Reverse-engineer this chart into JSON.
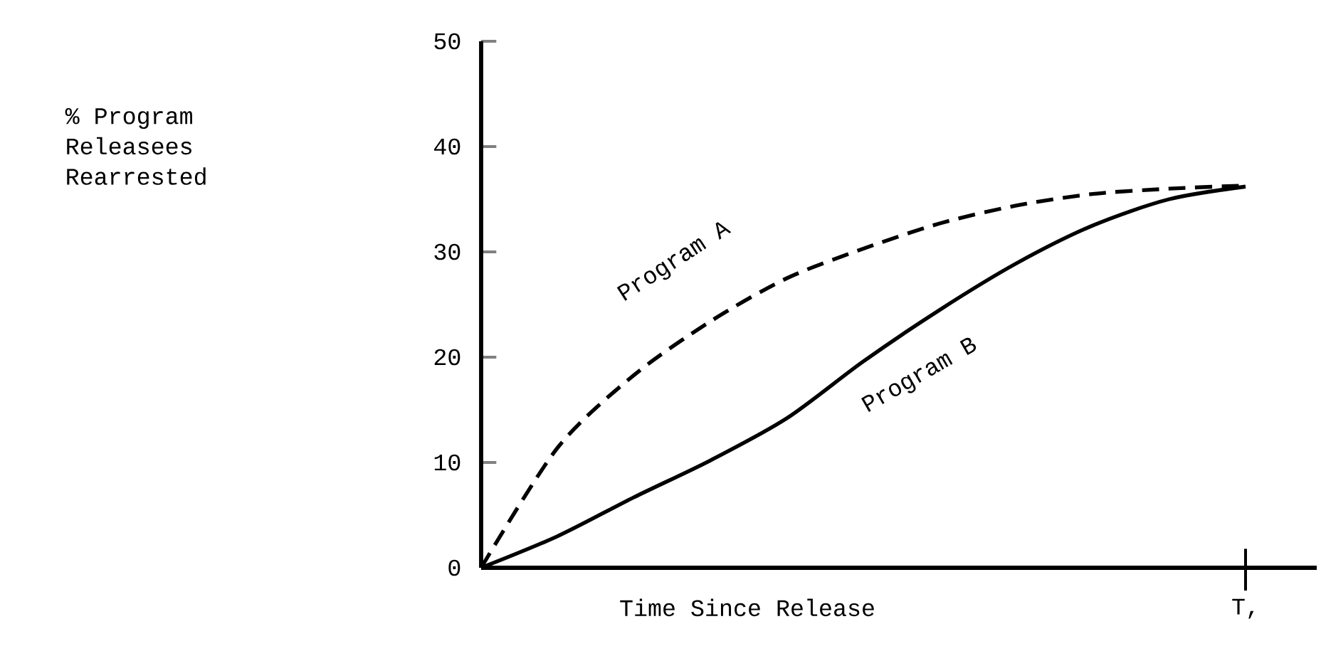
{
  "chart_data": {
    "type": "line",
    "xlabel": "Time Since Release",
    "categories": [
      null,
      null,
      null,
      null,
      null,
      null,
      null,
      null,
      null,
      null,
      null
    ],
    "series": [
      {
        "name": "Program A",
        "color": "#000000",
        "line_style": "dashed",
        "values": [
          0,
          11.4,
          18.3,
          23.4,
          27.5,
          30.3,
          32.7,
          34.4,
          35.5,
          36.0,
          36.3
        ]
      },
      {
        "name": "Program B",
        "color": "#000000",
        "line_style": "solid",
        "values": [
          0,
          3.0,
          6.7,
          10.2,
          14.2,
          19.6,
          24.5,
          28.9,
          32.5,
          35.0,
          36.2
        ]
      }
    ],
    "ylim": [
      0,
      50
    ],
    "yticks": [
      0,
      10,
      20,
      30,
      40,
      50
    ],
    "grid": false,
    "marker": "none",
    "annotations": [
      "T,",
      "% Program Releasees Rearrested"
    ]
  }
}
